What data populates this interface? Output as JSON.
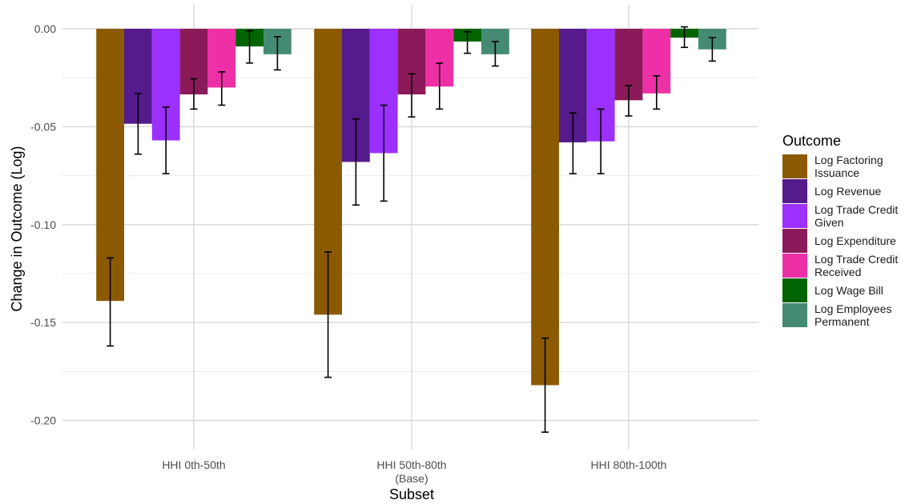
{
  "chart_data": {
    "type": "bar",
    "title": "",
    "xlabel": "Subset",
    "ylabel": "Change in Outcome (Log)",
    "ylim": [
      -0.215,
      0.01
    ],
    "yticks": [
      0.0,
      -0.05,
      -0.1,
      -0.15,
      -0.2
    ],
    "ytick_labels": [
      "0.00",
      "-0.05",
      "-0.10",
      "-0.15",
      "-0.20"
    ],
    "grid": true,
    "legend_position": "right",
    "legend_title": "Outcome",
    "categories": [
      [
        "HHI 0th-50th"
      ],
      [
        "HHI 50th-80th",
        "(Base)"
      ],
      [
        "HHI 80th-100th"
      ]
    ],
    "series": [
      {
        "name": [
          "Log Factoring",
          "Issuance"
        ],
        "color": "#8B5A00",
        "values": [
          -0.139,
          -0.146,
          -0.182
        ],
        "ci_low": [
          -0.162,
          -0.178,
          -0.206
        ],
        "ci_high": [
          -0.117,
          -0.114,
          -0.158
        ]
      },
      {
        "name": [
          "Log Revenue"
        ],
        "color": "#551A8B",
        "values": [
          -0.0485,
          -0.068,
          -0.058
        ],
        "ci_low": [
          -0.064,
          -0.09,
          -0.074
        ],
        "ci_high": [
          -0.033,
          -0.046,
          -0.043
        ]
      },
      {
        "name": [
          "Log Trade Credit",
          "Given"
        ],
        "color": "#9B30FF",
        "values": [
          -0.057,
          -0.0635,
          -0.0575
        ],
        "ci_low": [
          -0.074,
          -0.088,
          -0.074
        ],
        "ci_high": [
          -0.04,
          -0.039,
          -0.041
        ]
      },
      {
        "name": [
          "Log Expenditure"
        ],
        "color": "#8B1A5A",
        "values": [
          -0.0335,
          -0.0335,
          -0.0365
        ],
        "ci_low": [
          -0.041,
          -0.045,
          -0.0445
        ],
        "ci_high": [
          -0.0255,
          -0.023,
          -0.029
        ]
      },
      {
        "name": [
          "Log Trade Credit",
          "Received"
        ],
        "color": "#EE30A7",
        "values": [
          -0.03,
          -0.0295,
          -0.033
        ],
        "ci_low": [
          -0.039,
          -0.041,
          -0.041
        ],
        "ci_high": [
          -0.022,
          -0.0175,
          -0.024
        ]
      },
      {
        "name": [
          "Log Wage Bill"
        ],
        "color": "#006400",
        "values": [
          -0.009,
          -0.0065,
          -0.0045
        ],
        "ci_low": [
          -0.0175,
          -0.0125,
          -0.0095
        ],
        "ci_high": [
          -0.001,
          -0.0015,
          0.001
        ]
      },
      {
        "name": [
          "Log Employees",
          "Permanent"
        ],
        "color": "#458B74",
        "values": [
          -0.013,
          -0.013,
          -0.0105
        ],
        "ci_low": [
          -0.021,
          -0.019,
          -0.0165
        ],
        "ci_high": [
          -0.004,
          -0.0065,
          -0.0045
        ]
      }
    ]
  }
}
